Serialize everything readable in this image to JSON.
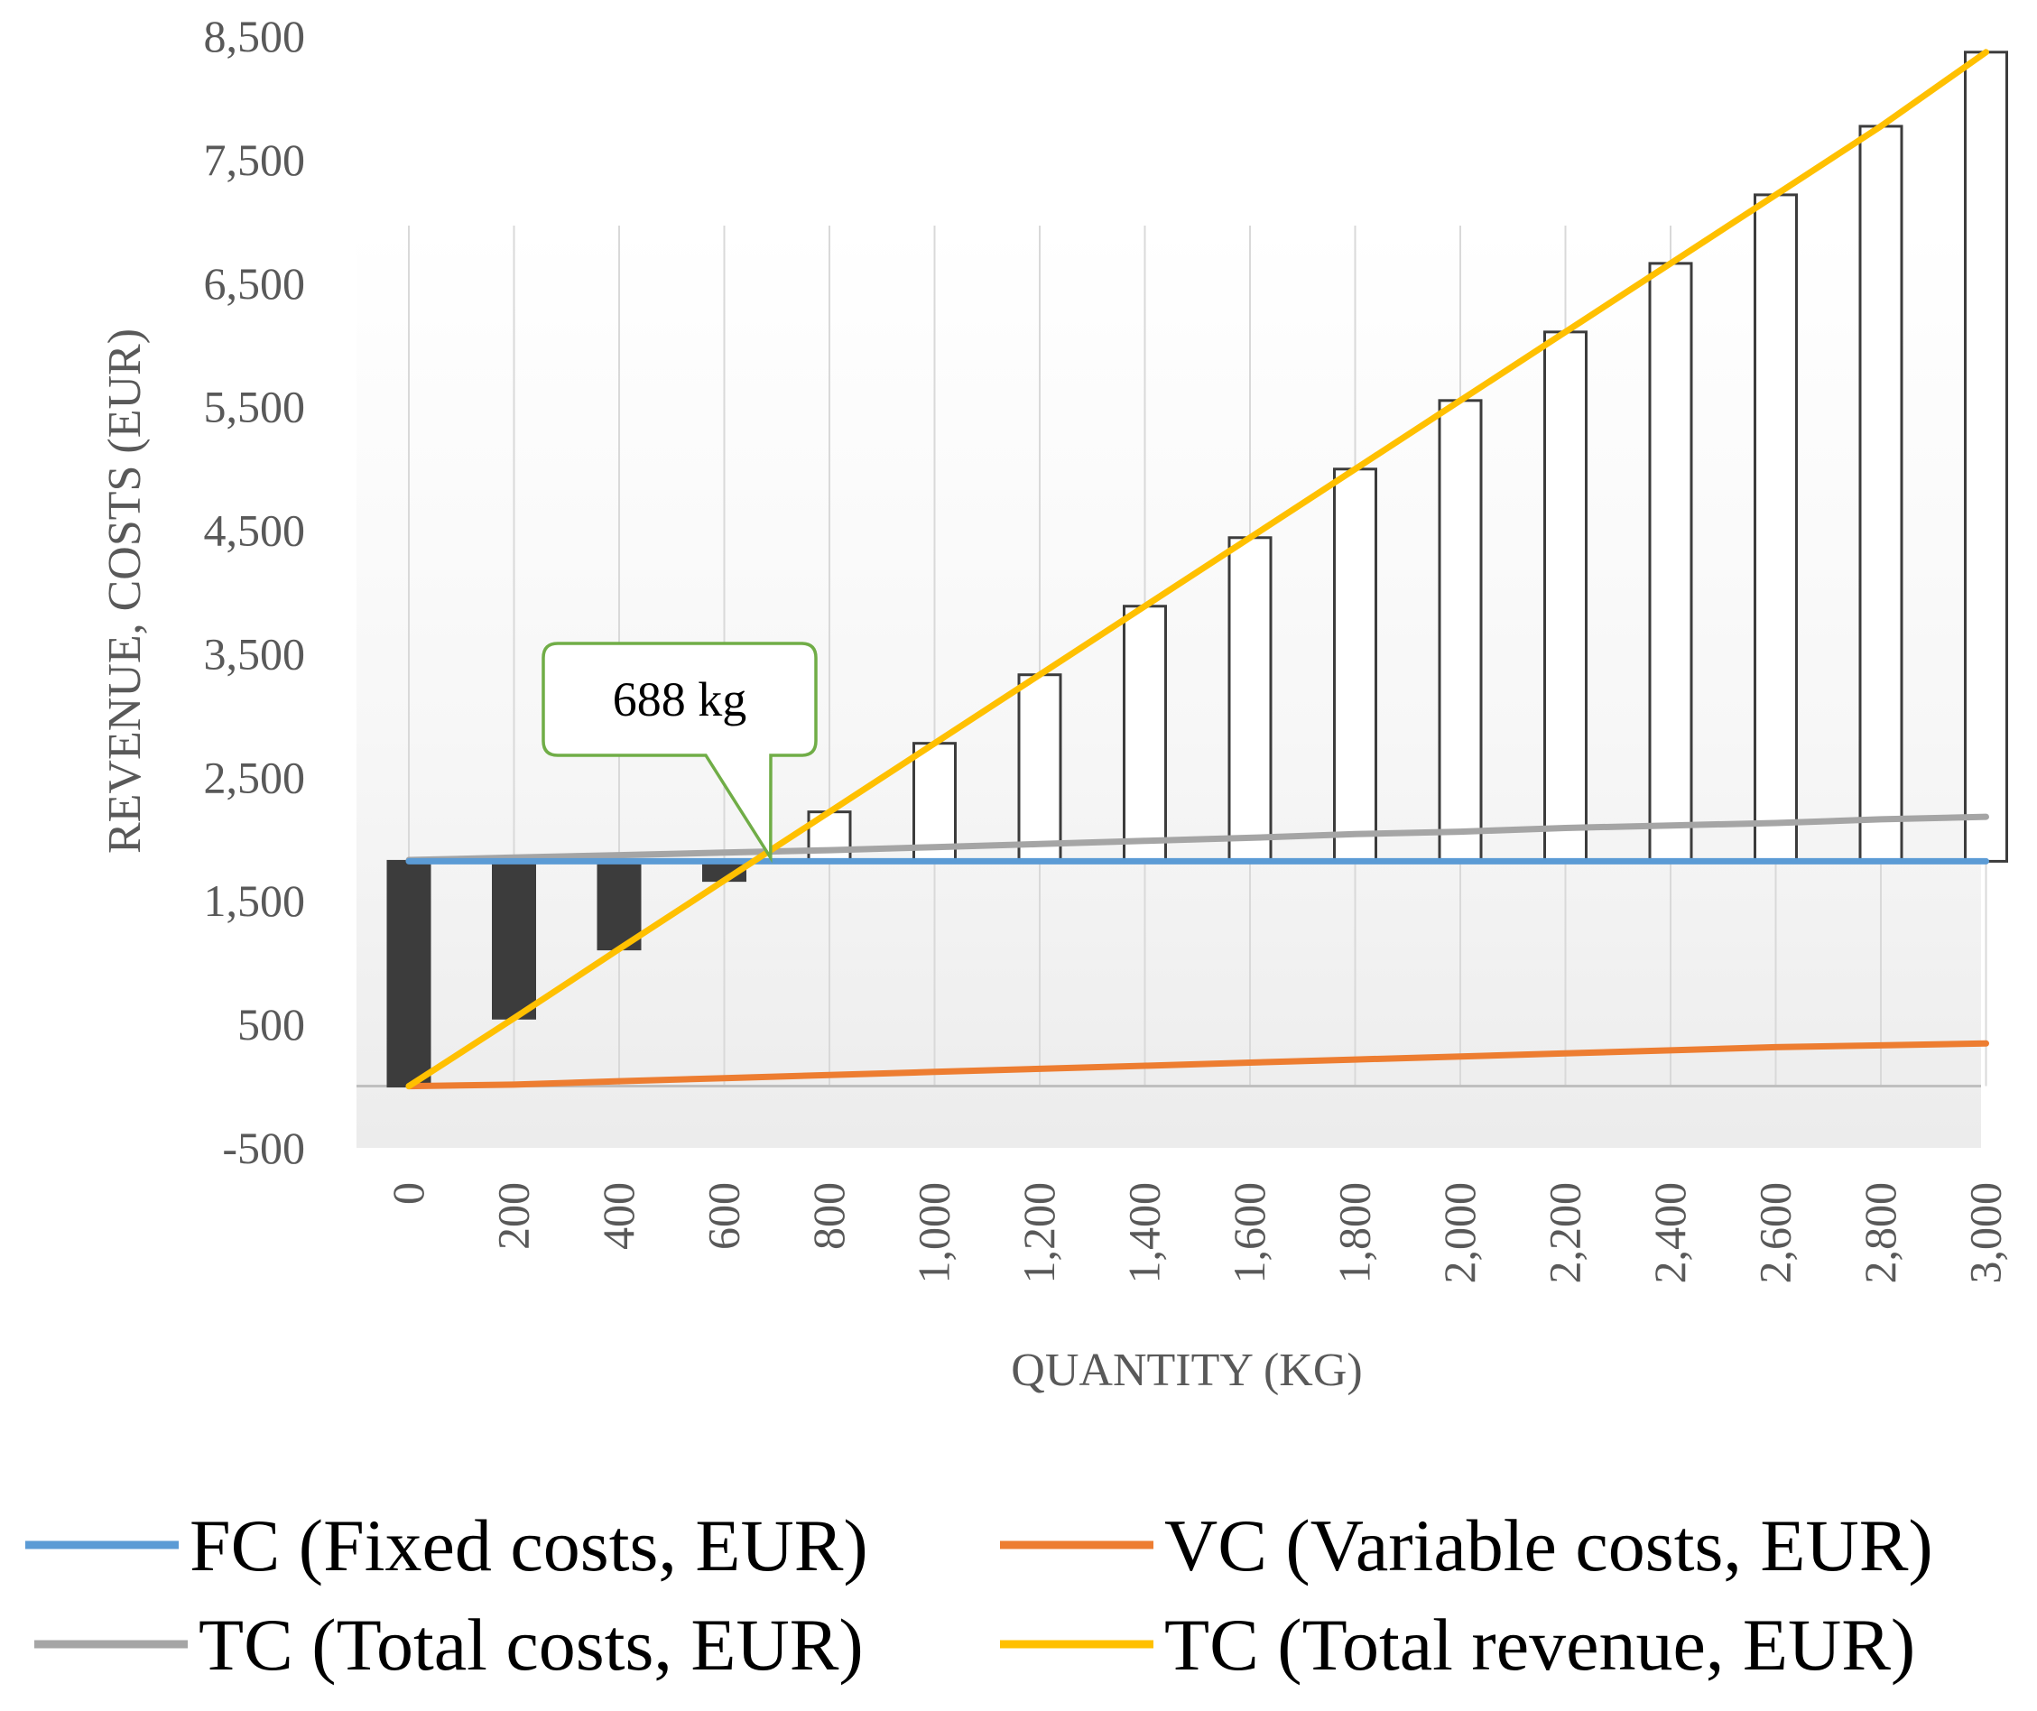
{
  "chart_data": {
    "type": "waterfall_line",
    "title": "",
    "xlabel": "QUANTITY (KG)",
    "ylabel": "REVENUE, COSTS (EUR)",
    "ylim": [
      -500,
      8500
    ],
    "yticks": [
      8500,
      7500,
      6500,
      5500,
      4500,
      3500,
      2500,
      1500,
      500,
      -500
    ],
    "ytick_labels": [
      "8,500",
      "7,500",
      "6,500",
      "5,500",
      "4,500",
      "3,500",
      "2,500",
      "1,500",
      "500",
      "-500"
    ],
    "x": [
      0,
      200,
      400,
      600,
      800,
      1000,
      1200,
      1400,
      1600,
      1800,
      2000,
      2200,
      2400,
      2600,
      2800,
      3000
    ],
    "x_labels": [
      "0",
      "200",
      "400",
      "600",
      "800",
      "1,000",
      "1,200",
      "1,400",
      "1,600",
      "1,800",
      "2,000",
      "2,200",
      "2,400",
      "2,600",
      "2,800",
      "3,000"
    ],
    "series": [
      {
        "name": "FC (Fixed costs, EUR)",
        "color": "#5b9bd5",
        "values": [
          1820,
          1820,
          1820,
          1820,
          1820,
          1820,
          1820,
          1820,
          1820,
          1820,
          1820,
          1820,
          1820,
          1820,
          1820,
          1820
        ]
      },
      {
        "name": "VC (Variable costs, EUR)",
        "color": "#ed7d31",
        "values": [
          0,
          12,
          40,
          65,
          90,
          115,
          140,
          165,
          190,
          215,
          240,
          265,
          290,
          315,
          330,
          345
        ]
      },
      {
        "name": "TC (Total costs, EUR)",
        "color": "#a5a5a5",
        "values": [
          1830,
          1850,
          1870,
          1890,
          1910,
          1935,
          1960,
          1985,
          2010,
          2040,
          2060,
          2090,
          2110,
          2130,
          2160,
          2180
        ]
      },
      {
        "name": "TC (Total revenue, EUR)",
        "color": "#ffc000",
        "values": [
          0,
          550,
          1110,
          1665,
          2220,
          2775,
          3330,
          3885,
          4440,
          4995,
          5550,
          6105,
          6660,
          7215,
          7770,
          8370
        ]
      }
    ],
    "profit_bars": {
      "base": 1820,
      "values": [
        -1820,
        -1270,
        -710,
        -155,
        400,
        955,
        1510,
        2065,
        2620,
        3175,
        3730,
        4285,
        4840,
        5395,
        5950,
        6550
      ],
      "negative_color": "#3c3c3c",
      "positive_color": "#ffffff"
    },
    "annotation": {
      "text": "688 kg",
      "x": 688,
      "color": "#70ad47"
    },
    "legend_position": "bottom"
  }
}
